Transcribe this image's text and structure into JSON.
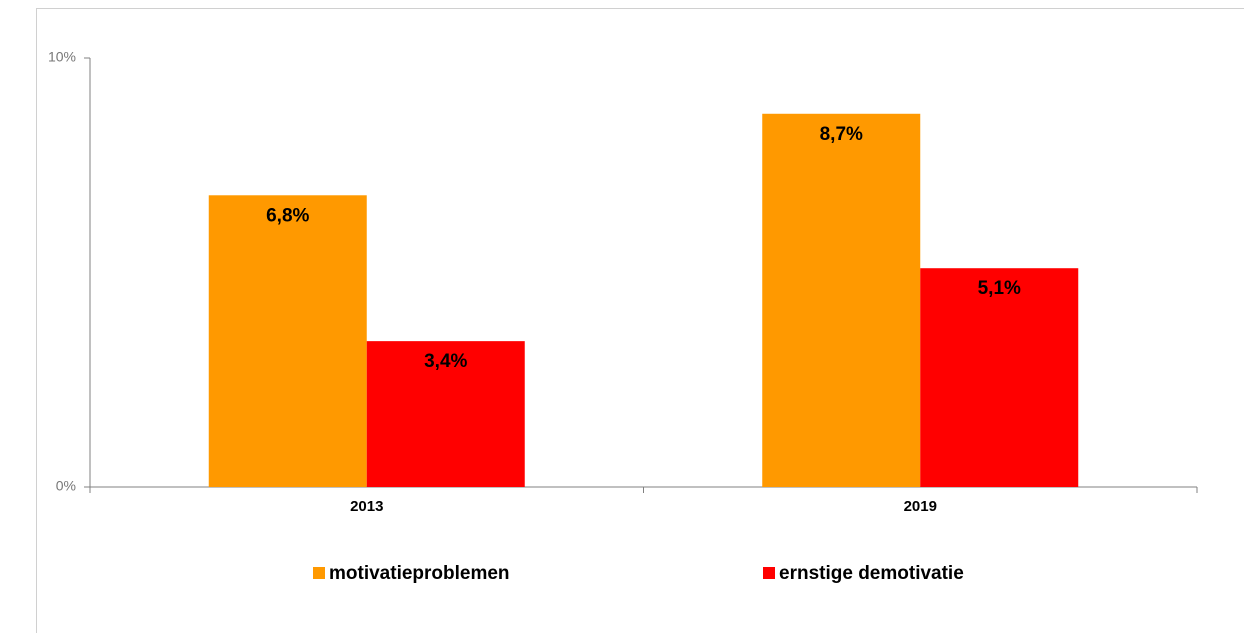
{
  "chart_data": {
    "type": "bar",
    "categories": [
      "2013",
      "2019"
    ],
    "series": [
      {
        "name": "motivatieproblemen",
        "color": "#ff9900",
        "values": [
          6.8,
          8.7
        ],
        "value_labels": [
          "6,8%",
          "8,7%"
        ]
      },
      {
        "name": "ernstige demotivatie",
        "color": "#ff0000",
        "values": [
          3.4,
          5.1
        ],
        "value_labels": [
          "3,4%",
          "5,1%"
        ]
      }
    ],
    "ylim": [
      0,
      10
    ],
    "yticks": [
      {
        "value": 0,
        "label": "0%"
      },
      {
        "value": 10,
        "label": "10%"
      }
    ],
    "grid": false
  }
}
